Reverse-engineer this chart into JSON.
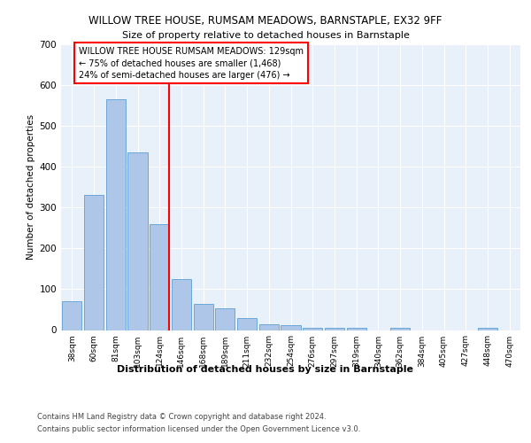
{
  "title1": "WILLOW TREE HOUSE, RUMSAM MEADOWS, BARNSTAPLE, EX32 9FF",
  "title2": "Size of property relative to detached houses in Barnstaple",
  "xlabel": "Distribution of detached houses by size in Barnstaple",
  "ylabel": "Number of detached properties",
  "categories": [
    "38sqm",
    "60sqm",
    "81sqm",
    "103sqm",
    "124sqm",
    "146sqm",
    "168sqm",
    "189sqm",
    "211sqm",
    "232sqm",
    "254sqm",
    "276sqm",
    "297sqm",
    "319sqm",
    "340sqm",
    "362sqm",
    "384sqm",
    "405sqm",
    "427sqm",
    "448sqm",
    "470sqm"
  ],
  "values": [
    70,
    330,
    565,
    435,
    260,
    125,
    65,
    53,
    30,
    15,
    12,
    5,
    5,
    5,
    0,
    5,
    0,
    0,
    0,
    5,
    0
  ],
  "bar_color": "#aec6e8",
  "bar_edge_color": "#5a9fd4",
  "redline_index": 4,
  "redline_label": "WILLOW TREE HOUSE RUMSAM MEADOWS: 129sqm",
  "redline_sub1": "← 75% of detached houses are smaller (1,468)",
  "redline_sub2": "24% of semi-detached houses are larger (476) →",
  "ylim": [
    0,
    700
  ],
  "yticks": [
    0,
    100,
    200,
    300,
    400,
    500,
    600,
    700
  ],
  "footer1": "Contains HM Land Registry data © Crown copyright and database right 2024.",
  "footer2": "Contains public sector information licensed under the Open Government Licence v3.0.",
  "plot_bg_color": "#e8f0fa"
}
